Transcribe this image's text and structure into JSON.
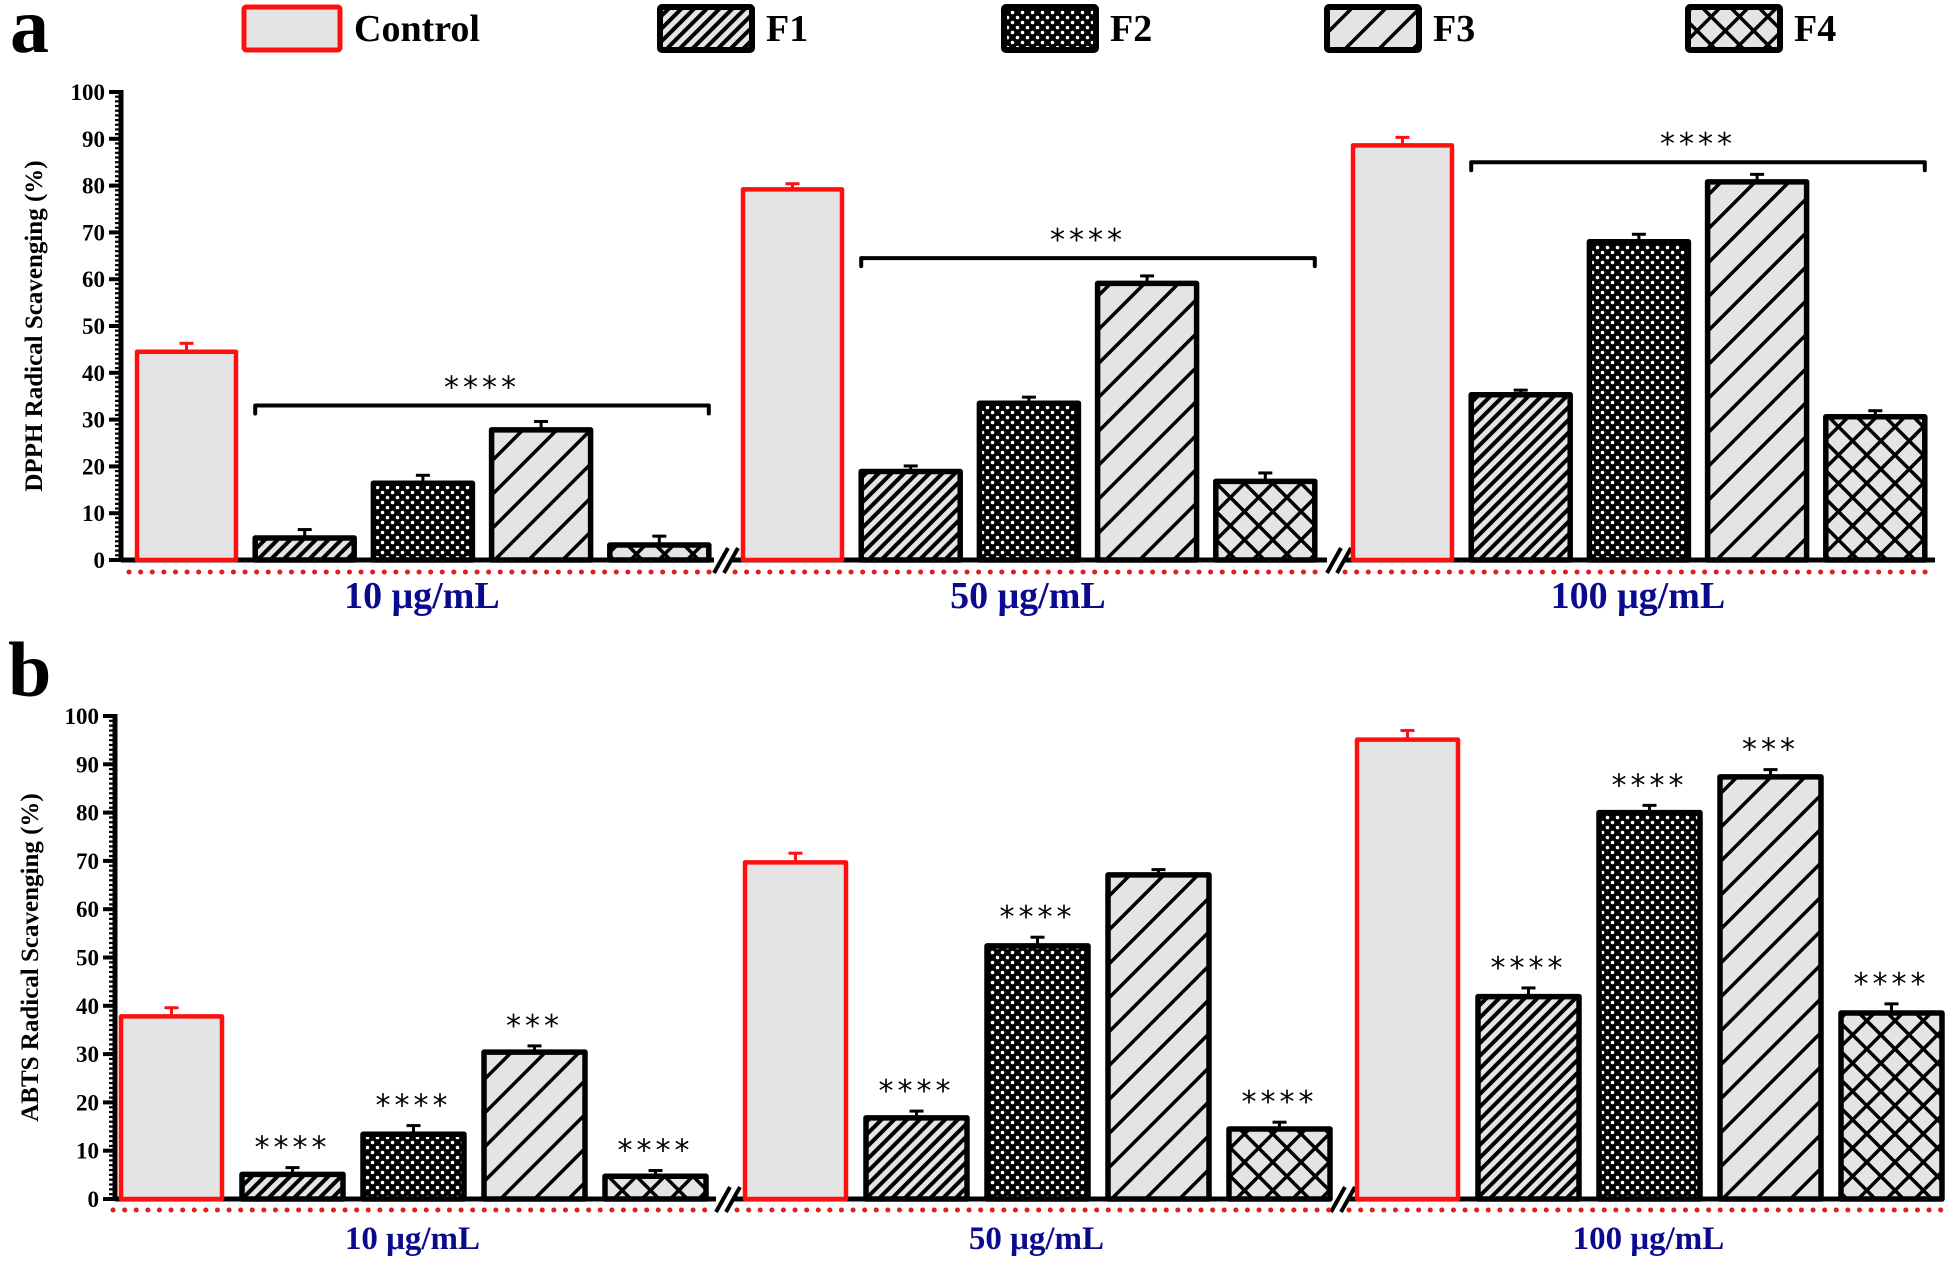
{
  "legend": {
    "items": [
      {
        "name": "Control",
        "pattern": "control"
      },
      {
        "name": "F1",
        "pattern": "diag-fine"
      },
      {
        "name": "F2",
        "pattern": "dots"
      },
      {
        "name": "F3",
        "pattern": "diag-wide"
      },
      {
        "name": "F4",
        "pattern": "crosshatch"
      }
    ]
  },
  "colors": {
    "control_border": "#ff1010",
    "bar_fill": "#e4e4e4",
    "bar_border": "#000000",
    "category_label": "#0a0a8f",
    "baseline_dots": "#e02020"
  },
  "chart_data": [
    {
      "panel": "a",
      "type": "bar",
      "title": "",
      "ylabel": "DPPH Radical Scavenging (%)",
      "xlabel": "",
      "ylim": [
        0,
        100
      ],
      "yticks": [
        0,
        10,
        20,
        30,
        40,
        50,
        60,
        70,
        80,
        90,
        100
      ],
      "categories": [
        "10 μg/mL",
        "50 μg/mL",
        "100 μg/mL"
      ],
      "series": [
        {
          "name": "Control",
          "values": [
            44.5,
            79.2,
            88.6
          ],
          "errors": [
            1.8,
            1.2,
            1.7
          ]
        },
        {
          "name": "F1",
          "values": [
            4.7,
            18.9,
            35.3
          ],
          "errors": [
            1.8,
            1.2,
            1.0
          ]
        },
        {
          "name": "F2",
          "values": [
            16.4,
            33.5,
            68.0
          ],
          "errors": [
            1.7,
            1.3,
            1.6
          ]
        },
        {
          "name": "F3",
          "values": [
            27.8,
            59.1,
            80.8
          ],
          "errors": [
            1.8,
            1.6,
            1.6
          ]
        },
        {
          "name": "F4",
          "values": [
            3.2,
            16.8,
            30.6
          ],
          "errors": [
            1.9,
            1.8,
            1.3
          ]
        }
      ],
      "significance": [
        {
          "category": "10 μg/mL",
          "type": "bracket",
          "span": [
            "F1",
            "F4"
          ],
          "label": "****",
          "y": 33
        },
        {
          "category": "50 μg/mL",
          "type": "bracket",
          "span": [
            "F1",
            "F4"
          ],
          "label": "****",
          "y": 64.5
        },
        {
          "category": "100 μg/mL",
          "type": "bracket",
          "span": [
            "F1",
            "F4"
          ],
          "label": "****",
          "y": 85
        }
      ],
      "axis_break": true,
      "legend_position": "top"
    },
    {
      "panel": "b",
      "type": "bar",
      "title": "",
      "ylabel": "ABTS Radical Scavenging (%)",
      "xlabel": "",
      "ylim": [
        0,
        100
      ],
      "yticks": [
        0,
        10,
        20,
        30,
        40,
        50,
        60,
        70,
        80,
        90,
        100
      ],
      "categories": [
        "10 μg/mL",
        "50 μg/mL",
        "100 μg/mL"
      ],
      "series": [
        {
          "name": "Control",
          "values": [
            37.8,
            69.7,
            95.1
          ],
          "errors": [
            1.8,
            1.9,
            1.9
          ]
        },
        {
          "name": "F1",
          "values": [
            5.1,
            16.8,
            41.9
          ],
          "errors": [
            1.4,
            1.4,
            1.8
          ]
        },
        {
          "name": "F2",
          "values": [
            13.4,
            52.4,
            80.0
          ],
          "errors": [
            1.8,
            1.8,
            1.5
          ]
        },
        {
          "name": "F3",
          "values": [
            30.4,
            67.1,
            87.4
          ],
          "errors": [
            1.3,
            1.1,
            1.5
          ]
        },
        {
          "name": "F4",
          "values": [
            4.7,
            14.5,
            38.5
          ],
          "errors": [
            1.2,
            1.4,
            1.9
          ]
        }
      ],
      "significance_labels": [
        [
          "",
          "****",
          "****",
          "***",
          "****"
        ],
        [
          "",
          "****",
          "****",
          "",
          "****"
        ],
        [
          "",
          "****",
          "****",
          "***",
          "****"
        ]
      ],
      "axis_break": true
    }
  ],
  "panels": {
    "a": {
      "letter": "a"
    },
    "b": {
      "letter": "b"
    }
  }
}
